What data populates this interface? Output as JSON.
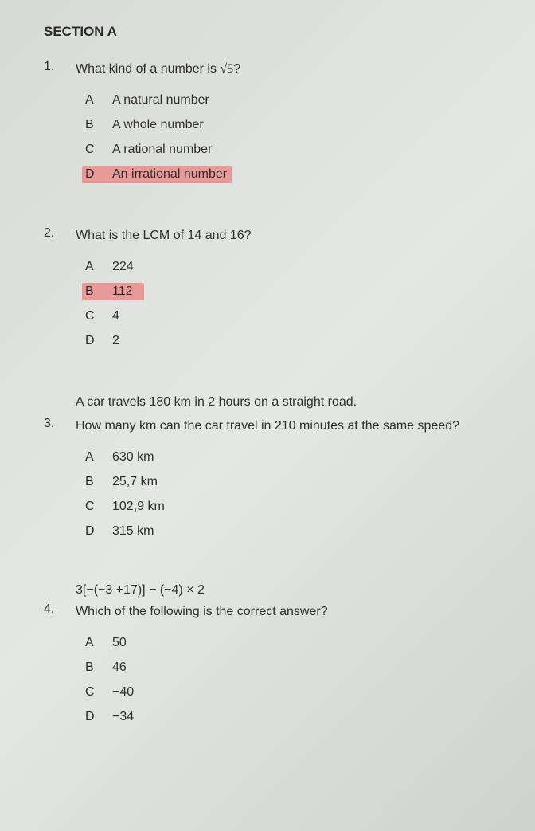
{
  "section": {
    "title": "SECTION A"
  },
  "questions": [
    {
      "num": "1.",
      "preamble": "",
      "text": "What kind of a number is √5?",
      "options": [
        {
          "letter": "A",
          "text": "A natural number",
          "highlighted": false
        },
        {
          "letter": "B",
          "text": "A whole number",
          "highlighted": false
        },
        {
          "letter": "C",
          "text": "A rational number",
          "highlighted": false
        },
        {
          "letter": "D",
          "text": "An irrational number",
          "highlighted": true
        }
      ],
      "highlight_style": "full"
    },
    {
      "num": "2.",
      "preamble": "",
      "text": "What is the LCM of 14 and 16?",
      "options": [
        {
          "letter": "A",
          "text": "224",
          "highlighted": false
        },
        {
          "letter": "B",
          "text": "112",
          "highlighted": true
        },
        {
          "letter": "C",
          "text": "4",
          "highlighted": false
        },
        {
          "letter": "D",
          "text": "2",
          "highlighted": false
        }
      ],
      "highlight_style": "narrow"
    },
    {
      "num": "3.",
      "preamble": "A car travels 180 km in 2 hours on a straight road.",
      "text": "How many km can the car travel in 210 minutes at the same speed?",
      "options": [
        {
          "letter": "A",
          "text": "630 km",
          "highlighted": false
        },
        {
          "letter": "B",
          "text": "25,7 km",
          "highlighted": false
        },
        {
          "letter": "C",
          "text": "102,9 km",
          "highlighted": false
        },
        {
          "letter": "D",
          "text": "315 km",
          "highlighted": false
        }
      ],
      "highlight_style": "none"
    },
    {
      "num": "4.",
      "preamble": "3[−(−3 +17)] − (−4) × 2",
      "text": "Which of the following is the correct answer?",
      "options": [
        {
          "letter": "A",
          "text": "50",
          "highlighted": false
        },
        {
          "letter": "B",
          "text": "46",
          "highlighted": false
        },
        {
          "letter": "C",
          "text": "−40",
          "highlighted": false
        },
        {
          "letter": "D",
          "text": "−34",
          "highlighted": false
        }
      ],
      "highlight_style": "none"
    }
  ],
  "colors": {
    "highlight": "#e89a99",
    "text": "#2f2f2f",
    "background": "#dcdedb"
  }
}
